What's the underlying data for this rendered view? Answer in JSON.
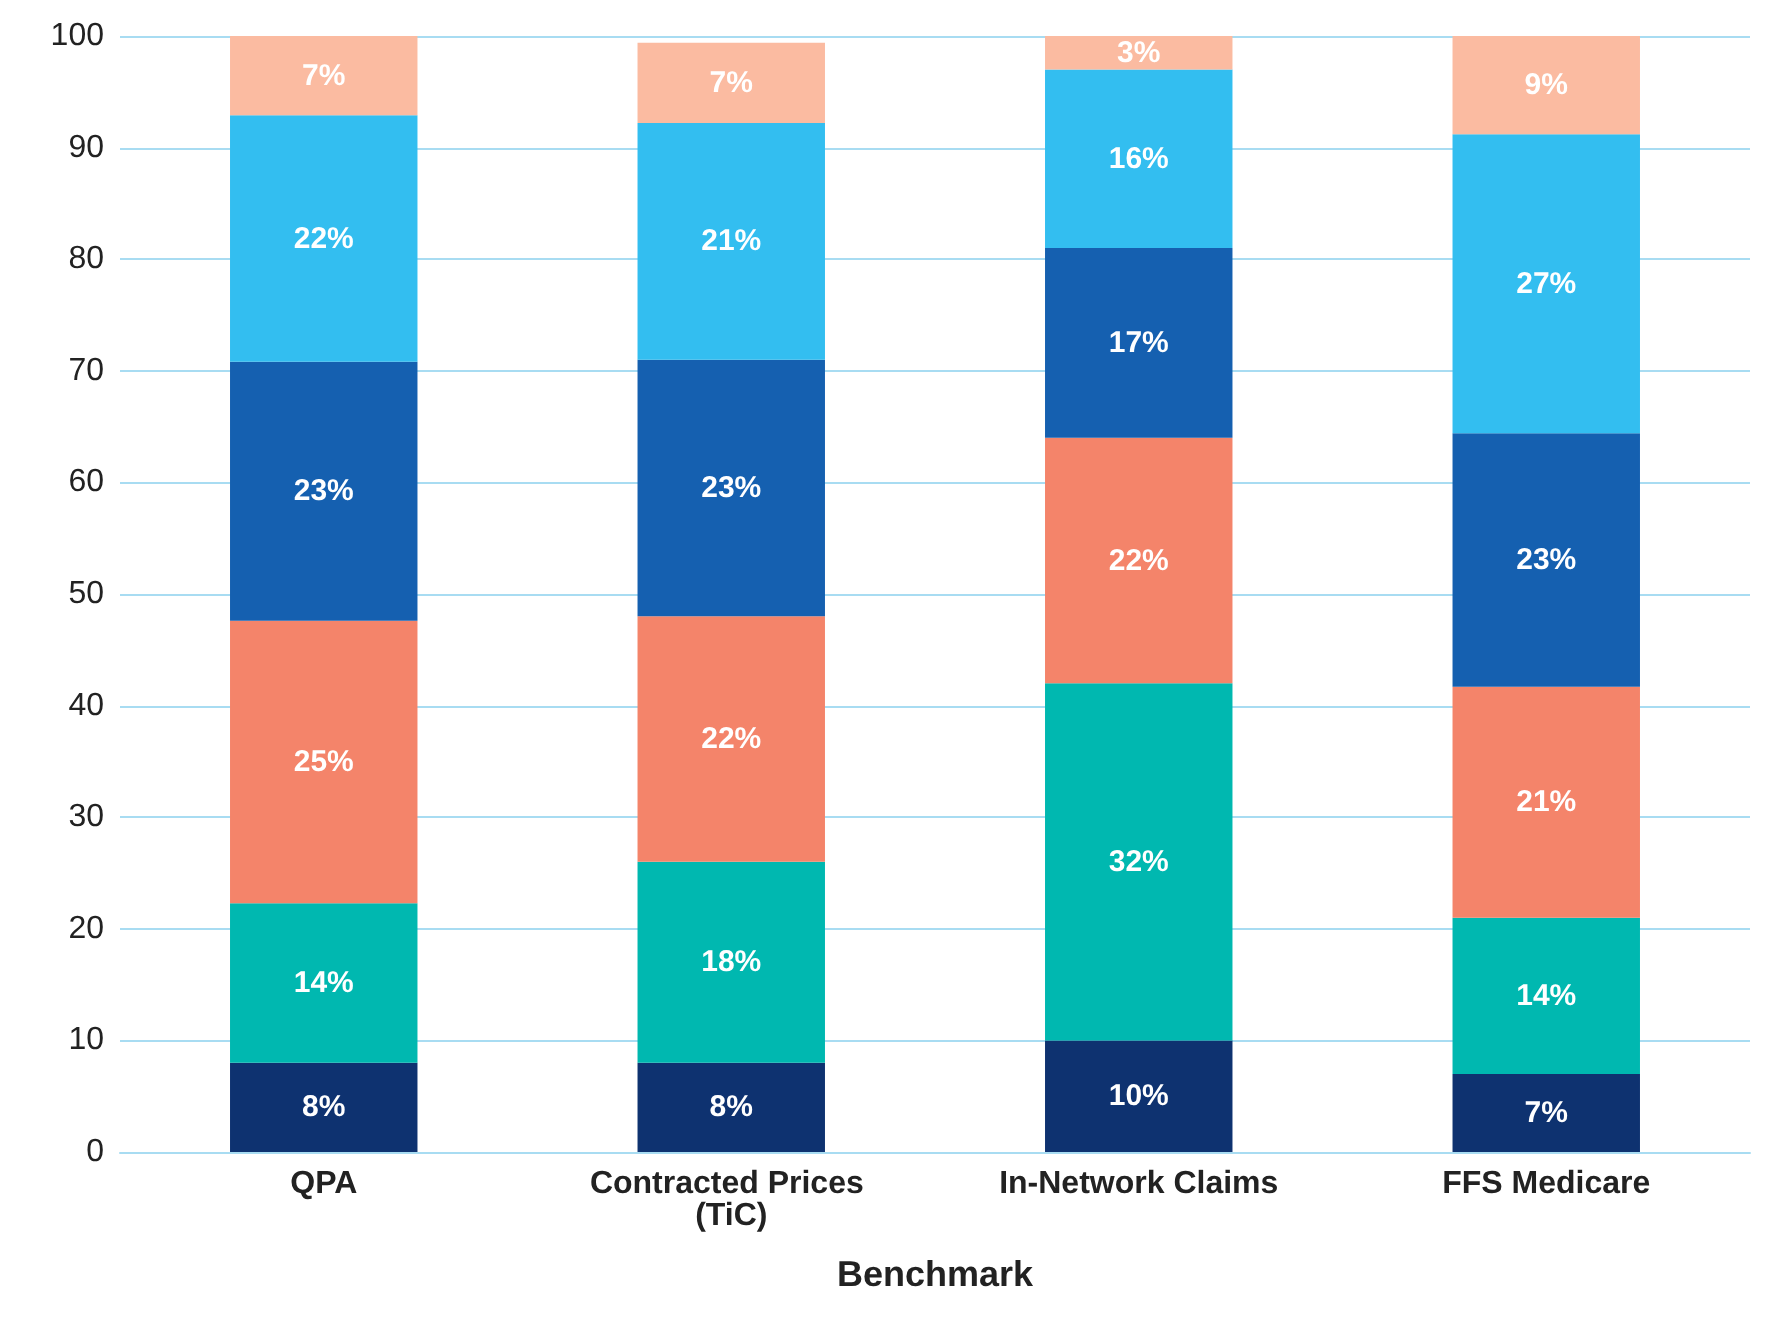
{
  "chart_data": {
    "type": "bar",
    "stacked": true,
    "xlabel": "Benchmark",
    "categories": [
      "QPA",
      "Contracted Prices (TiC)",
      "In-Network Claims",
      "FFS Medicare"
    ],
    "series": [
      {
        "color": "#0e3270",
        "values": [
          8,
          8,
          10,
          7
        ],
        "value_labels": [
          "8%",
          "8%",
          "10%",
          "7%"
        ]
      },
      {
        "color": "#00b8b0",
        "values": [
          14.3,
          18,
          32,
          14
        ],
        "value_labels": [
          "14%",
          "18%",
          "32%",
          "14%"
        ]
      },
      {
        "color": "#f4846a",
        "values": [
          25.3,
          22,
          22,
          20.7
        ],
        "value_labels": [
          "25%",
          "22%",
          "22%",
          "21%"
        ]
      },
      {
        "color": "#1560b0",
        "values": [
          23.2,
          23,
          17,
          22.7
        ],
        "value_labels": [
          "23%",
          "23%",
          "17%",
          "23%"
        ]
      },
      {
        "color": "#33bef0",
        "values": [
          22.1,
          21.2,
          16,
          26.8
        ],
        "value_labels": [
          "22%",
          "21%",
          "16%",
          "27%"
        ]
      },
      {
        "color": "#fbbba1",
        "values": [
          7.1,
          7.2,
          3,
          8.8
        ],
        "value_labels": [
          "7%",
          "7%",
          "3%",
          "9%"
        ]
      }
    ],
    "ylim": [
      0,
      100
    ],
    "yticks": [
      0,
      10,
      20,
      30,
      40,
      50,
      60,
      70,
      80,
      90,
      100
    ],
    "grid": "y"
  }
}
